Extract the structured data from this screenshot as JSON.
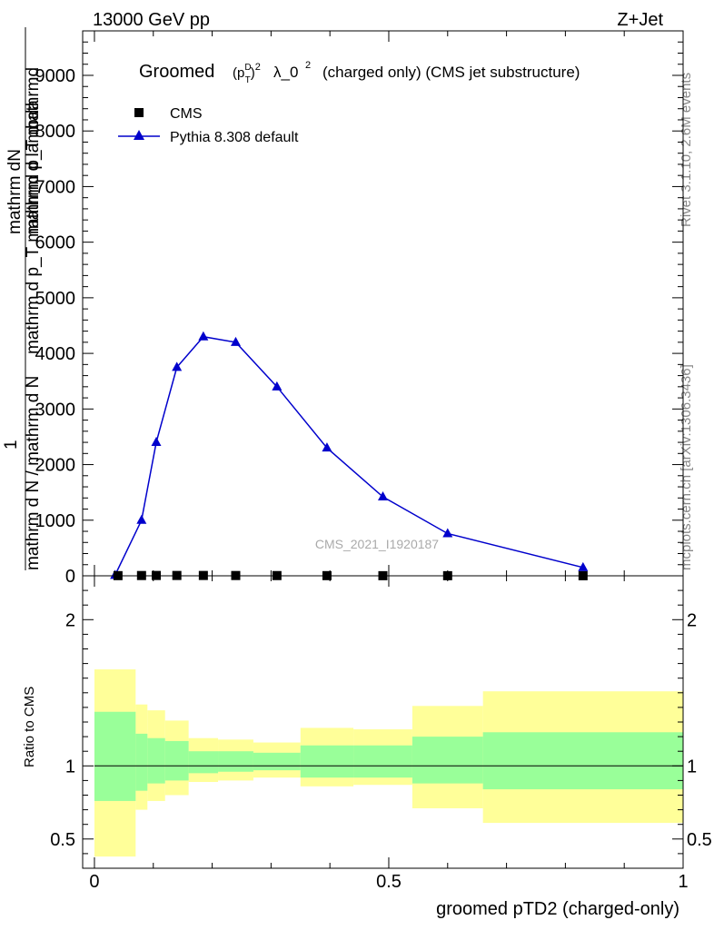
{
  "header": {
    "left": "13000 GeV pp",
    "right": "Z+Jet"
  },
  "side_text": {
    "rivet": "Rivet 3.1.10,  2.6M events",
    "mcplots": "mcplots.cern.ch [arXiv:1306.3436]"
  },
  "watermark": "CMS_2021_I1920187",
  "colors": {
    "mc_line": "#0000cc",
    "data_marker": "#000000",
    "band_inner": "#99ff99",
    "band_outer": "#ffff99"
  },
  "chart_data": [
    {
      "type": "line",
      "title_prefix": "Groomed",
      "title_suffix": "λ_0",
      "title_rest": "(charged only) (CMS jet substructure)",
      "ylabel_lines": [
        "mathrm d lambda",
        "mathrm d p_T mathrmd p_T mathrmd",
        "mathrm dN"
      ],
      "ylabel_one": "1",
      "ylabel_bottom": "mathrm d N / mathrm d N",
      "xlim": [
        -0.02,
        1.0
      ],
      "ylim": [
        0,
        9800
      ],
      "yticks": [
        0,
        1000,
        2000,
        3000,
        4000,
        5000,
        6000,
        7000,
        8000,
        9000
      ],
      "ytick_labels": [
        "0",
        "1000",
        "2000",
        "3000",
        "4000",
        "5000",
        "6000",
        "7000",
        "8000",
        "9000"
      ],
      "legend": {
        "placement": "top-left",
        "entries": [
          "CMS",
          "Pythia 8.308 default"
        ]
      },
      "series": [
        {
          "name": "CMS",
          "marker": "square",
          "x": [
            0.04,
            0.08,
            0.105,
            0.14,
            0.185,
            0.24,
            0.31,
            0.395,
            0.49,
            0.6,
            0.83
          ],
          "y": [
            3,
            5,
            6,
            6,
            6,
            5,
            4,
            3,
            2,
            2,
            1
          ]
        },
        {
          "name": "Pythia 8.308 default",
          "marker": "triangle",
          "x": [
            0.035,
            0.08,
            0.105,
            0.14,
            0.185,
            0.24,
            0.31,
            0.395,
            0.49,
            0.6,
            0.83
          ],
          "y": [
            10,
            1000,
            2400,
            3750,
            4300,
            4200,
            3400,
            2300,
            1420,
            760,
            150
          ]
        }
      ]
    },
    {
      "type": "line",
      "ylabel": "Ratio to CMS",
      "xlabel": "groomed pTD2 (charged-only)",
      "xlim": [
        -0.02,
        1.0
      ],
      "ylim": [
        0.3,
        2.3
      ],
      "yticks": [
        0.5,
        1,
        2
      ],
      "ytick_labels": [
        "0.5",
        "1",
        "2"
      ],
      "xticks": [
        0,
        0.5,
        1
      ],
      "xtick_labels": [
        "0",
        "0.5",
        "1"
      ],
      "reference_line": 1.0,
      "bins": [
        0.0,
        0.07,
        0.09,
        0.12,
        0.16,
        0.21,
        0.27,
        0.35,
        0.44,
        0.54,
        0.66,
        1.0
      ],
      "band_inner": {
        "lo": [
          0.76,
          0.83,
          0.88,
          0.9,
          0.95,
          0.96,
          0.97,
          0.92,
          0.92,
          0.88,
          0.84
        ],
        "hi": [
          1.37,
          1.22,
          1.19,
          1.17,
          1.1,
          1.1,
          1.09,
          1.14,
          1.14,
          1.2,
          1.23
        ]
      },
      "band_outer": {
        "lo": [
          0.38,
          0.7,
          0.76,
          0.8,
          0.89,
          0.9,
          0.92,
          0.86,
          0.87,
          0.71,
          0.61
        ],
        "hi": [
          1.66,
          1.42,
          1.38,
          1.31,
          1.19,
          1.18,
          1.16,
          1.26,
          1.25,
          1.41,
          1.51
        ]
      }
    }
  ]
}
